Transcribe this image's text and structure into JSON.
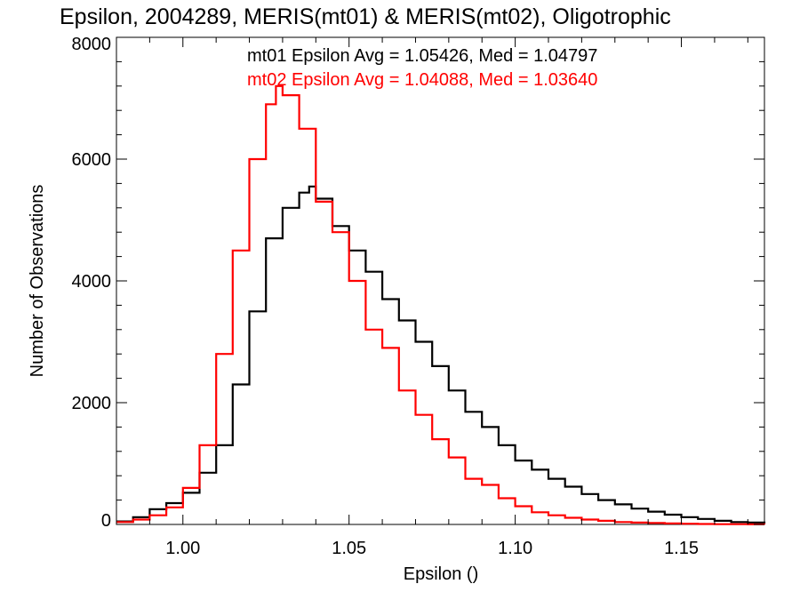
{
  "chart_data": {
    "type": "line",
    "title": "Epsilon, 2004289, MERIS(mt01) & MERIS(mt02), Oligotrophic",
    "xlabel": "Epsilon ()",
    "ylabel": "Number of Observations",
    "xlim": [
      0.98,
      1.175
    ],
    "ylim": [
      0,
      8000
    ],
    "x_ticks": [
      1.0,
      1.05,
      1.1,
      1.15
    ],
    "x_tick_labels": [
      "1.00",
      "1.05",
      "1.10",
      "1.15"
    ],
    "y_ticks": [
      0,
      2000,
      4000,
      6000,
      8000
    ],
    "y_tick_labels": [
      "0",
      "2000",
      "4000",
      "6000",
      "8000"
    ],
    "grid": false,
    "step": true,
    "annotations": [
      {
        "text": "mt01 Epsilon Avg = 1.05426, Med = 1.04797",
        "color": "#000000"
      },
      {
        "text": "mt02 Epsilon Avg = 1.04088, Med = 1.03640",
        "color": "#ff0000"
      }
    ],
    "series": [
      {
        "color": "#000000",
        "x": [
          0.98,
          0.985,
          0.99,
          0.995,
          1.0,
          1.005,
          1.01,
          1.015,
          1.02,
          1.025,
          1.03,
          1.035,
          1.038,
          1.04,
          1.045,
          1.05,
          1.055,
          1.06,
          1.065,
          1.07,
          1.075,
          1.08,
          1.085,
          1.09,
          1.095,
          1.1,
          1.105,
          1.11,
          1.115,
          1.12,
          1.125,
          1.13,
          1.135,
          1.14,
          1.145,
          1.15,
          1.155,
          1.16,
          1.165,
          1.17,
          1.175
        ],
        "y": [
          50,
          120,
          250,
          350,
          520,
          850,
          1300,
          2300,
          3500,
          4700,
          5200,
          5450,
          5550,
          5350,
          4900,
          4500,
          4150,
          3700,
          3350,
          3000,
          2600,
          2200,
          1850,
          1600,
          1300,
          1050,
          900,
          750,
          620,
          500,
          400,
          330,
          260,
          210,
          160,
          120,
          90,
          60,
          40,
          30,
          20
        ]
      },
      {
        "color": "#ff0000",
        "x": [
          0.98,
          0.985,
          0.99,
          0.995,
          1.0,
          1.005,
          1.01,
          1.015,
          1.02,
          1.025,
          1.028,
          1.03,
          1.035,
          1.04,
          1.045,
          1.05,
          1.055,
          1.06,
          1.065,
          1.07,
          1.075,
          1.08,
          1.085,
          1.09,
          1.095,
          1.1,
          1.105,
          1.11,
          1.115,
          1.12,
          1.125,
          1.13,
          1.135,
          1.14,
          1.145,
          1.15,
          1.155,
          1.16,
          1.165,
          1.17,
          1.175
        ],
        "y": [
          40,
          80,
          150,
          280,
          600,
          1300,
          2800,
          4500,
          6000,
          6900,
          7200,
          7050,
          6500,
          5300,
          4800,
          4000,
          3200,
          2900,
          2200,
          1800,
          1400,
          1100,
          750,
          650,
          430,
          300,
          200,
          150,
          110,
          80,
          60,
          40,
          30,
          25,
          18,
          12,
          8,
          5,
          4,
          3,
          2
        ]
      }
    ]
  }
}
